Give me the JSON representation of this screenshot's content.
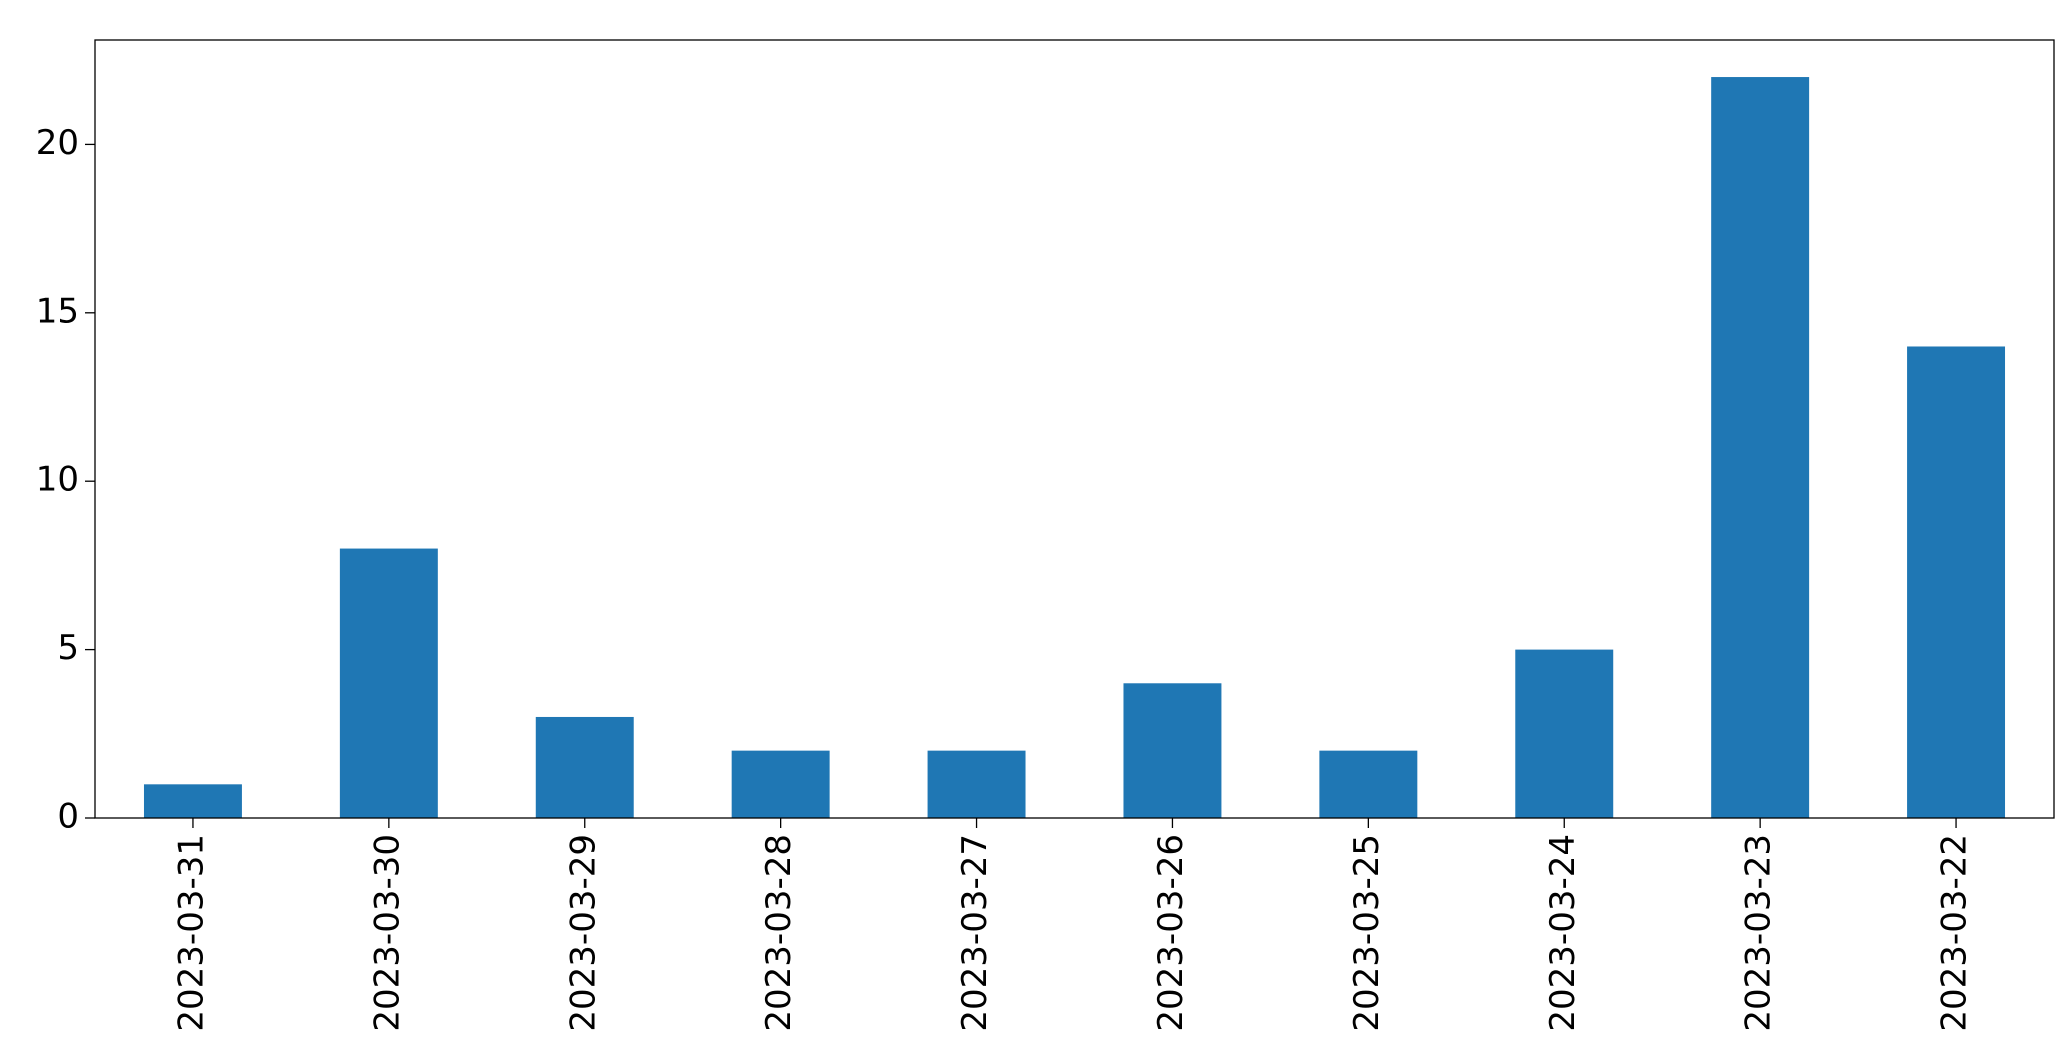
{
  "chart_data": {
    "type": "bar",
    "categories": [
      "2023-03-31",
      "2023-03-30",
      "2023-03-29",
      "2023-03-28",
      "2023-03-27",
      "2023-03-26",
      "2023-03-25",
      "2023-03-24",
      "2023-03-23",
      "2023-03-22"
    ],
    "values": [
      1,
      8,
      3,
      2,
      2,
      4,
      2,
      5,
      22,
      14
    ],
    "color": "#1f77b4",
    "ylim": [
      0,
      23.1
    ],
    "yticks": [
      0,
      5,
      10,
      15,
      20
    ],
    "grid": false
  }
}
